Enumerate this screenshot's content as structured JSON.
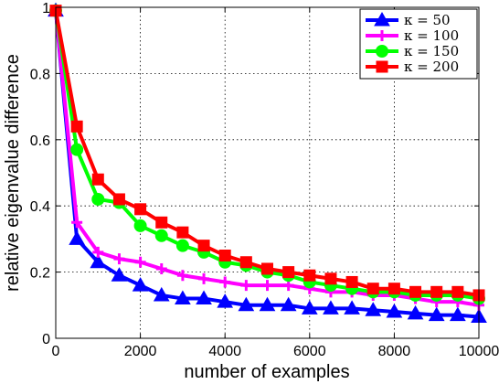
{
  "chart_data": {
    "type": "line",
    "title": "",
    "xlabel": "number of examples",
    "ylabel": "relative eigenvalue difference",
    "xlim": [
      0,
      10000
    ],
    "ylim": [
      0,
      1
    ],
    "x_ticks": [
      "0",
      "2000",
      "4000",
      "6000",
      "8000",
      "10000"
    ],
    "y_ticks": [
      "0",
      "0.2",
      "0.4",
      "0.6",
      "0.8",
      "1"
    ],
    "grid": true,
    "legend_position": "top-right",
    "x": [
      0,
      500,
      1000,
      1500,
      2000,
      2500,
      3000,
      3500,
      4000,
      4500,
      5000,
      5500,
      6000,
      6500,
      7000,
      7500,
      8000,
      8500,
      9000,
      9500,
      10000
    ],
    "series": [
      {
        "name": "κ = 50",
        "color": "#0000ff",
        "marker": "triangle",
        "values": [
          0.99,
          0.3,
          0.23,
          0.19,
          0.16,
          0.13,
          0.12,
          0.12,
          0.11,
          0.1,
          0.1,
          0.1,
          0.09,
          0.09,
          0.09,
          0.085,
          0.08,
          0.075,
          0.07,
          0.07,
          0.065
        ]
      },
      {
        "name": "κ = 100",
        "color": "#ff00ff",
        "marker": "plus",
        "values": [
          0.99,
          0.35,
          0.26,
          0.24,
          0.23,
          0.21,
          0.19,
          0.18,
          0.17,
          0.16,
          0.16,
          0.16,
          0.15,
          0.14,
          0.14,
          0.13,
          0.13,
          0.12,
          0.11,
          0.11,
          0.1
        ]
      },
      {
        "name": "κ = 150",
        "color": "#00ff00",
        "marker": "circle",
        "values": [
          0.99,
          0.57,
          0.42,
          0.41,
          0.34,
          0.31,
          0.28,
          0.26,
          0.23,
          0.22,
          0.2,
          0.19,
          0.17,
          0.16,
          0.15,
          0.14,
          0.14,
          0.13,
          0.13,
          0.13,
          0.12
        ]
      },
      {
        "name": "κ = 200",
        "color": "#ff0000",
        "marker": "square",
        "values": [
          0.99,
          0.64,
          0.48,
          0.42,
          0.39,
          0.35,
          0.32,
          0.28,
          0.25,
          0.23,
          0.21,
          0.2,
          0.19,
          0.18,
          0.17,
          0.15,
          0.15,
          0.14,
          0.14,
          0.14,
          0.13
        ]
      }
    ]
  }
}
